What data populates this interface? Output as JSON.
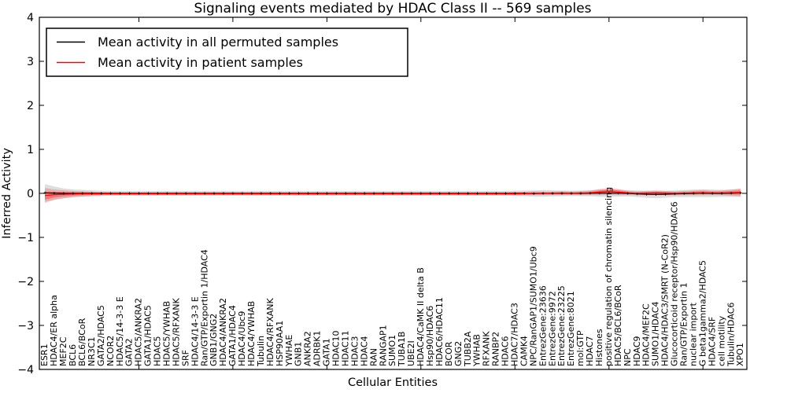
{
  "title": "Signaling events mediated by HDAC Class II -- 569 samples",
  "legend": {
    "entries": [
      {
        "label": "Mean activity in all permuted samples",
        "color": "#000000"
      },
      {
        "label": "Mean activity in patient samples",
        "color": "#ff0000"
      }
    ]
  },
  "colors": {
    "patient_line": "#ff0000",
    "permuted_line": "#000000",
    "patient_band": "rgba(255,0,0,0.20)",
    "patient_band_inner": "rgba(255,0,0,0.30)",
    "permuted_band": "rgba(0,0,0,0.13)",
    "axis": "#000000",
    "background": "#ffffff"
  },
  "chart_data": {
    "type": "line",
    "title": "Signaling events mediated by HDAC Class II -- 569 samples",
    "xlabel": "Cellular Entities",
    "ylabel": "Inferred Activity",
    "ylim": [
      -4,
      4
    ],
    "yticks": [
      -4,
      -3,
      -2,
      -1,
      0,
      1,
      2,
      3,
      4
    ],
    "ytick_labels": [
      "−4",
      "−3",
      "−2",
      "−1",
      "0",
      "1",
      "2",
      "3",
      "4"
    ],
    "xticks_minor_every": 10,
    "grid": false,
    "legend_position": "upper left",
    "categories": [
      "ESR1",
      "HDAC4/ER alpha",
      "MEF2C",
      "BCL6",
      "BCL6/BCoR",
      "NR3C1",
      "GATA2/HDAC5",
      "NCOR2",
      "HDAC5/14-3-3 E",
      "GATA2",
      "HDAC5/ANKRA2",
      "GATA1/HDAC5",
      "HDAC5",
      "HDAC5/YWHAB",
      "HDAC5/RFXANK",
      "SRF",
      "HDAC4/14-3-3 E",
      "Ran/GTP/Exportin 1/HDAC4",
      "GNB1/GNG2",
      "HDAC4/ANKRA2",
      "GATA1/HDAC4",
      "HDAC4/Ubc9",
      "HDAC4/YWHAB",
      "Tubulin",
      "HDAC4/RFXANK",
      "HSP90AA1",
      "YWHAE",
      "GNB1",
      "ANKRA2",
      "ADRBK1",
      "GATA1",
      "HDAC10",
      "HDAC11",
      "HDAC3",
      "HDAC4",
      "RAN",
      "RANGAP1",
      "SUMO1",
      "TUBA1B",
      "UBE2I",
      "HDAC4/CaMK II delta B",
      "Hsp90/HDAC6",
      "HDAC6/HDAC11",
      "BCOR",
      "GNG2",
      "TUBB2A",
      "YWHAB",
      "RFXANK",
      "RANBP2",
      "HDAC6",
      "HDAC7/HDAC3",
      "CAMK4",
      "NPC/RanGAP1/SUMO1/Ubc9",
      "EntrezGene:23636",
      "EntrezGene:9972",
      "EntrezGene:23225",
      "EntrezGene:8021",
      "mol:GTP",
      "HDAC7",
      "Histones",
      "positive regulation of chromatin silencing",
      "HDAC5/BCL6/BCoR",
      "NPC",
      "HDAC9",
      "HDAC4/MEF2C",
      "SUMO1/HDAC4",
      "HDAC4/HDAC3/SMRT (N-CoR2)",
      "Glucocorticoid receptor/Hsp90/HDAC6",
      "Ran/GTP/Exportin 1",
      "nuclear import",
      "G beta1gamma2/HDAC5",
      "HDAC4/SRF",
      "cell motility",
      "Tubulin/HDAC6",
      "XPO1"
    ],
    "series": [
      {
        "name": "Mean activity in all permuted samples",
        "color": "#000000",
        "values": [
          0.01,
          0.005,
          0,
          0,
          0,
          0,
          0,
          0,
          0,
          0,
          0,
          0,
          0,
          0,
          0,
          0,
          0,
          0,
          0,
          0,
          0,
          0,
          0,
          0,
          0,
          0,
          0,
          0,
          0,
          0,
          0,
          0,
          0,
          0,
          0,
          0,
          0,
          0,
          0,
          0,
          0,
          0,
          0,
          0,
          0,
          0,
          0,
          0,
          0,
          0,
          0,
          0,
          -0.005,
          0,
          0,
          0,
          0,
          0,
          0.005,
          0.005,
          0.005,
          0.005,
          0,
          -0.01,
          -0.02,
          -0.025,
          -0.02,
          -0.01,
          -0.005,
          0,
          0.005,
          0,
          0,
          0.005,
          0.01
        ],
        "band_halfwidth": [
          0.2,
          0.15,
          0.11,
          0.09,
          0.08,
          0.07,
          0.06,
          0.055,
          0.055,
          0.055,
          0.055,
          0.055,
          0.055,
          0.055,
          0.055,
          0.055,
          0.055,
          0.055,
          0.055,
          0.055,
          0.055,
          0.055,
          0.055,
          0.055,
          0.055,
          0.055,
          0.055,
          0.055,
          0.055,
          0.055,
          0.055,
          0.055,
          0.055,
          0.055,
          0.055,
          0.055,
          0.055,
          0.055,
          0.055,
          0.055,
          0.055,
          0.055,
          0.055,
          0.055,
          0.055,
          0.055,
          0.055,
          0.055,
          0.055,
          0.055,
          0.06,
          0.065,
          0.07,
          0.075,
          0.07,
          0.065,
          0.06,
          0.065,
          0.07,
          0.08,
          0.085,
          0.08,
          0.07,
          0.075,
          0.08,
          0.085,
          0.08,
          0.075,
          0.08,
          0.085,
          0.09,
          0.085,
          0.08,
          0.085,
          0.09
        ]
      },
      {
        "name": "Mean activity in patient samples",
        "color": "#ff0000",
        "values": [
          -0.05,
          -0.03,
          -0.02,
          -0.015,
          -0.01,
          -0.01,
          -0.01,
          -0.01,
          -0.01,
          -0.01,
          -0.01,
          -0.01,
          -0.01,
          -0.01,
          -0.01,
          -0.01,
          -0.01,
          -0.01,
          -0.01,
          -0.01,
          -0.01,
          -0.01,
          -0.01,
          -0.01,
          -0.01,
          -0.01,
          -0.01,
          -0.01,
          -0.01,
          -0.01,
          -0.01,
          -0.01,
          -0.01,
          -0.01,
          -0.01,
          -0.01,
          -0.01,
          -0.01,
          -0.01,
          -0.01,
          -0.01,
          -0.01,
          -0.01,
          -0.01,
          -0.01,
          -0.01,
          -0.01,
          -0.01,
          -0.01,
          -0.01,
          -0.01,
          -0.005,
          0,
          0,
          0,
          0.005,
          0,
          0.005,
          0.01,
          0.03,
          0.045,
          0.03,
          0.01,
          0,
          0.005,
          0.01,
          0.005,
          0,
          0.005,
          0.01,
          0.015,
          0.01,
          0.01,
          0.015,
          0.02
        ],
        "band_halfwidth": [
          0.17,
          0.12,
          0.09,
          0.07,
          0.06,
          0.05,
          0.04,
          0.035,
          0.035,
          0.035,
          0.035,
          0.035,
          0.035,
          0.035,
          0.035,
          0.035,
          0.035,
          0.035,
          0.035,
          0.035,
          0.035,
          0.035,
          0.035,
          0.035,
          0.035,
          0.035,
          0.035,
          0.035,
          0.035,
          0.035,
          0.035,
          0.035,
          0.035,
          0.035,
          0.035,
          0.035,
          0.035,
          0.035,
          0.035,
          0.035,
          0.035,
          0.035,
          0.035,
          0.035,
          0.035,
          0.035,
          0.035,
          0.035,
          0.035,
          0.035,
          0.04,
          0.04,
          0.045,
          0.04,
          0.04,
          0.045,
          0.04,
          0.045,
          0.05,
          0.07,
          0.08,
          0.07,
          0.05,
          0.045,
          0.05,
          0.055,
          0.05,
          0.045,
          0.05,
          0.055,
          0.06,
          0.05,
          0.055,
          0.07,
          0.09
        ]
      }
    ]
  }
}
